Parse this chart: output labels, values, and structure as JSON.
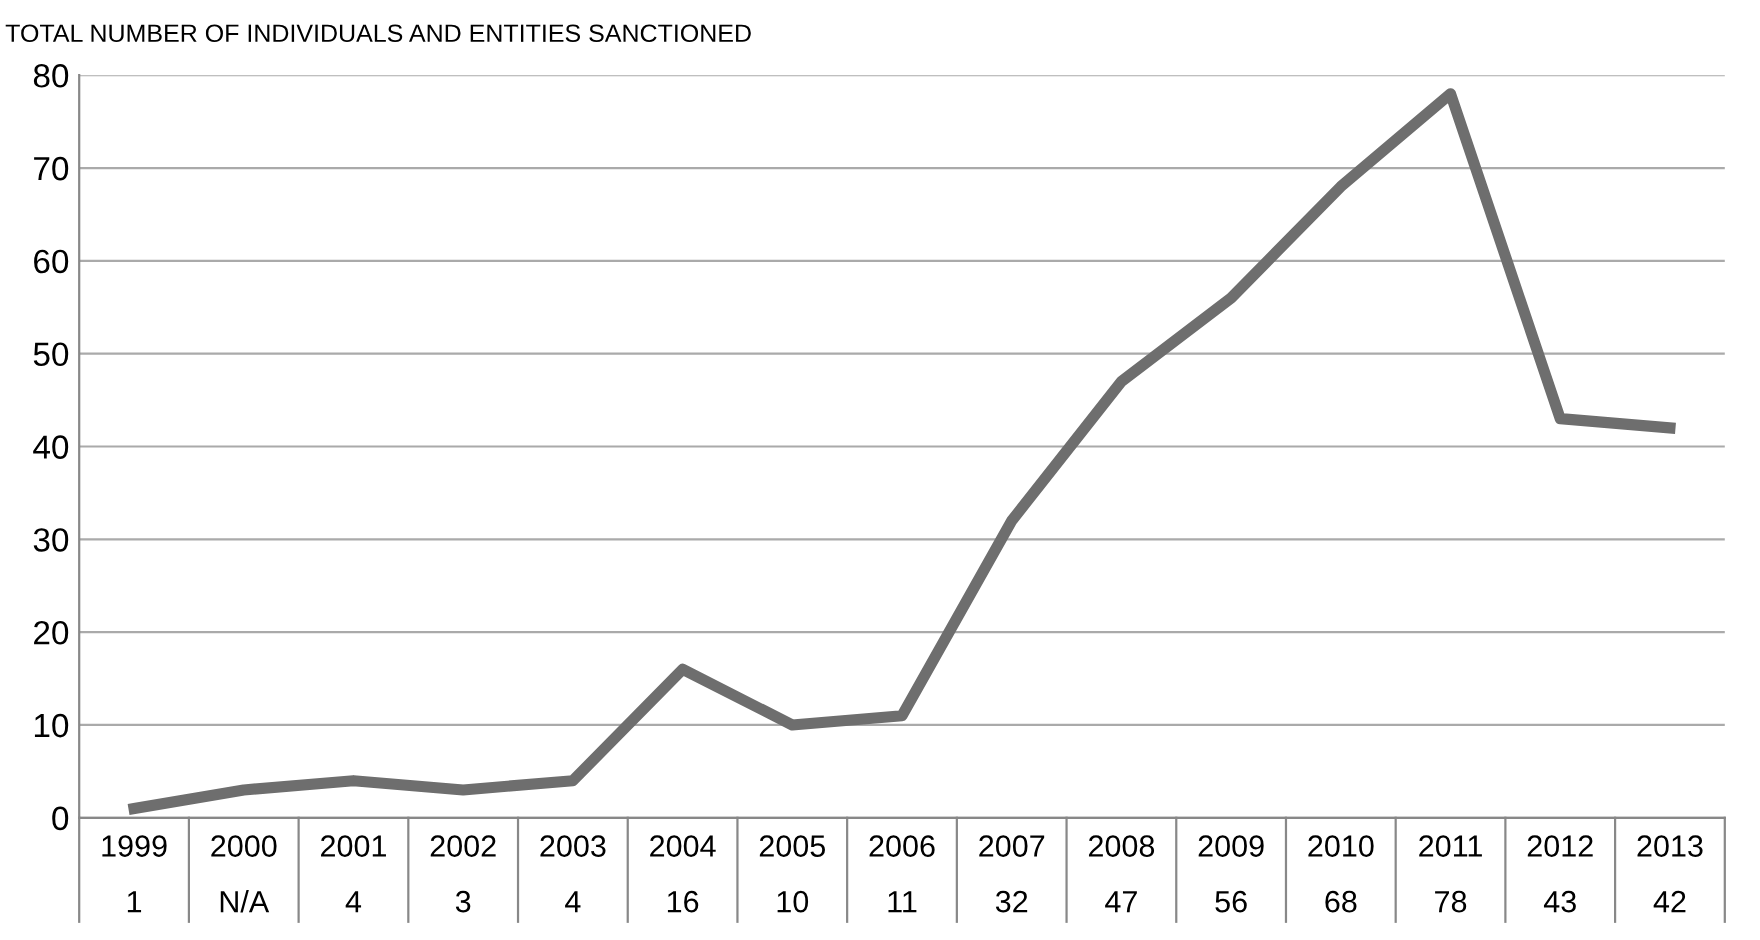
{
  "chart_data": {
    "type": "line",
    "title": "TOTAL NUMBER OF INDIVIDUALS AND ENTITIES SANCTIONED",
    "categories": [
      "1999",
      "2000",
      "2001",
      "2002",
      "2003",
      "2004",
      "2005",
      "2006",
      "2007",
      "2008",
      "2009",
      "2010",
      "2011",
      "2012",
      "2013"
    ],
    "series": [
      {
        "color": "#6e6e6e",
        "values": [
          1,
          3,
          4,
          3,
          4,
          16,
          10,
          11,
          32,
          47,
          56,
          68,
          78,
          43,
          42
        ],
        "value_labels": [
          "1",
          "N/A",
          "4",
          "3",
          "4",
          "16",
          "10",
          "11",
          "32",
          "47",
          "56",
          "68",
          "78",
          "43",
          "42"
        ]
      }
    ],
    "ylim": [
      0,
      80
    ],
    "yticks": [
      0,
      10,
      20,
      30,
      40,
      50,
      60,
      70,
      80
    ],
    "grid": "y",
    "marker": "none",
    "line_style": "solid",
    "legend": false
  }
}
